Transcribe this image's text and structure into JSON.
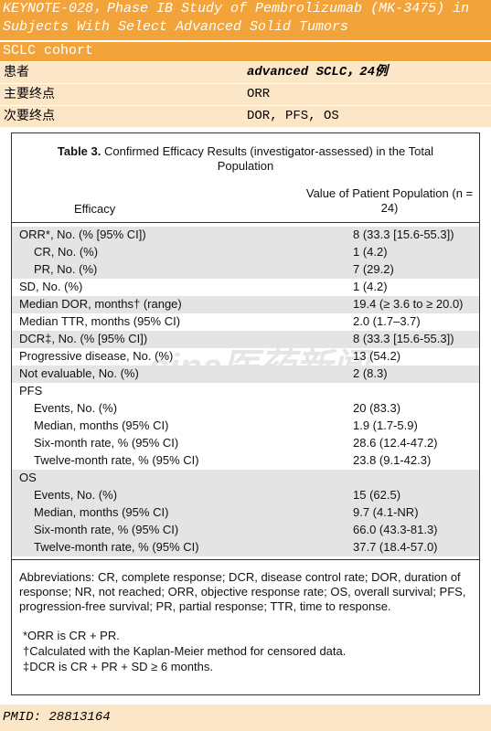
{
  "header": {
    "title": "KEYNOTE-028，Phase IB Study of Pembrolizumab (MK-3475) in Subjects With Select Advanced Solid Tumors",
    "cohort": "SCLC cohort"
  },
  "info": [
    {
      "key": "患者",
      "value": "advanced SCLC，24例"
    },
    {
      "key": "主要终点",
      "value": "ORR"
    },
    {
      "key": "次要终点",
      "value": "DOR, PFS, OS"
    }
  ],
  "table": {
    "caption_label": "Table 3.",
    "caption": "Confirmed Efficacy Results (investigator-assessed) in the Total Population",
    "col1": "Efficacy",
    "col2": "Value of Patient Population (n = 24)",
    "rows": [
      {
        "label": "ORR*, No. (% [95% CI])",
        "value": "8 (33.3 [15.6-55.3])"
      },
      {
        "label": "CR, No. (%)",
        "value": "1 (4.2)"
      },
      {
        "label": "PR, No. (%)",
        "value": "7 (29.2)"
      },
      {
        "label": "SD, No. (%)",
        "value": "1 (4.2)"
      },
      {
        "label": "Median DOR, months† (range)",
        "value": "19.4 (≥ 3.6 to ≥ 20.0)"
      },
      {
        "label": "Median TTR, months (95% CI)",
        "value": "2.0 (1.7–3.7)"
      },
      {
        "label": "DCR‡, No. (% [95% CI])",
        "value": "8 (33.3 [15.6-55.3])"
      },
      {
        "label": "Progressive disease, No. (%)",
        "value": "13 (54.2)"
      },
      {
        "label": "Not evaluable, No. (%)",
        "value": "2 (8.3)"
      },
      {
        "label": "PFS",
        "value": ""
      },
      {
        "label": "Events, No. (%)",
        "value": "20 (83.3)"
      },
      {
        "label": "Median, months (95% CI)",
        "value": "1.9 (1.7-5.9)"
      },
      {
        "label": "Six-month rate, % (95% CI)",
        "value": "28.6 (12.4-47.2)"
      },
      {
        "label": "Twelve-month rate, % (95% CI)",
        "value": "23.8 (9.1-42.3)"
      },
      {
        "label": "OS",
        "value": ""
      },
      {
        "label": "Events, No. (%)",
        "value": "15 (62.5)"
      },
      {
        "label": "Median, months (95% CI)",
        "value": "9.7 (4.1-NR)"
      },
      {
        "label": "Six-month rate, % (95% CI)",
        "value": "66.0 (43.3-81.3)"
      },
      {
        "label": "Twelve-month rate, % (95% CI)",
        "value": "37.7 (18.4-57.0)"
      }
    ],
    "abbreviations": "Abbreviations: CR, complete response; DCR, disease control rate; DOR, duration of response; NR, not reached; ORR, objective response rate; OS, overall survival; PFS, progression-free survival; PR, partial response; TTR, time to response.",
    "notes": [
      "*ORR is CR + PR.",
      "†Calculated with the Kaplan-Meier method for censored data.",
      "‡DCR is CR + PR + SD ≥ 6 months."
    ]
  },
  "watermark": "sina医药新闻",
  "footer": "PMID: 28813164"
}
